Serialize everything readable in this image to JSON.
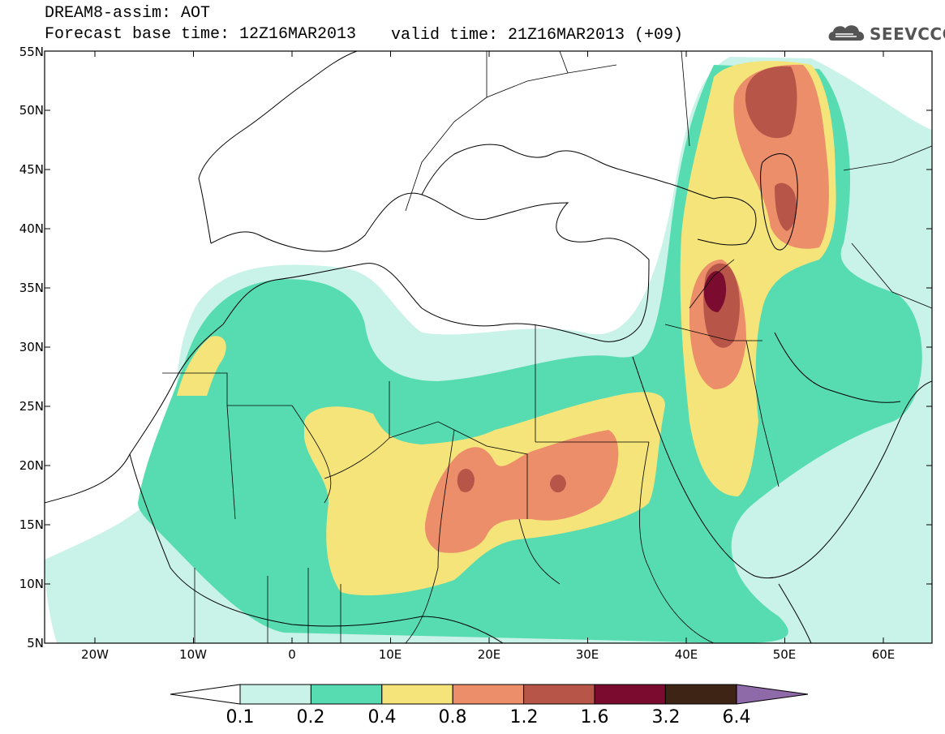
{
  "header": {
    "title_line1": "DREAM8-assim: AOT",
    "title_line2": "Forecast base time: 12Z16MAR2013",
    "valid_time": "valid time: 21Z16MAR2013 (+09)",
    "logo_text": "SEEVCCC"
  },
  "axes": {
    "lat_labels": [
      "55N",
      "50N",
      "45N",
      "40N",
      "35N",
      "30N",
      "25N",
      "20N",
      "15N",
      "10N",
      "5N"
    ],
    "lon_labels": [
      "20W",
      "10W",
      "0",
      "10E",
      "20E",
      "30E",
      "40E",
      "50E",
      "60E"
    ]
  },
  "colorbar": {
    "labels": [
      "0.1",
      "0.2",
      "0.4",
      "0.8",
      "1.2",
      "1.6",
      "3.2",
      "6.4"
    ],
    "colors": [
      "#c9f2e8",
      "#56dcb0",
      "#f4e47a",
      "#ec8e6a",
      "#b65548",
      "#7b0b2f",
      "#3e2415",
      "#8f6aa8"
    ]
  },
  "colors": {
    "c1": "#c9f2e8",
    "c2": "#56dcb0",
    "c3": "#f4e47a",
    "c4": "#ec8e6a",
    "c5": "#b65548",
    "c6": "#7b0b2f"
  }
}
